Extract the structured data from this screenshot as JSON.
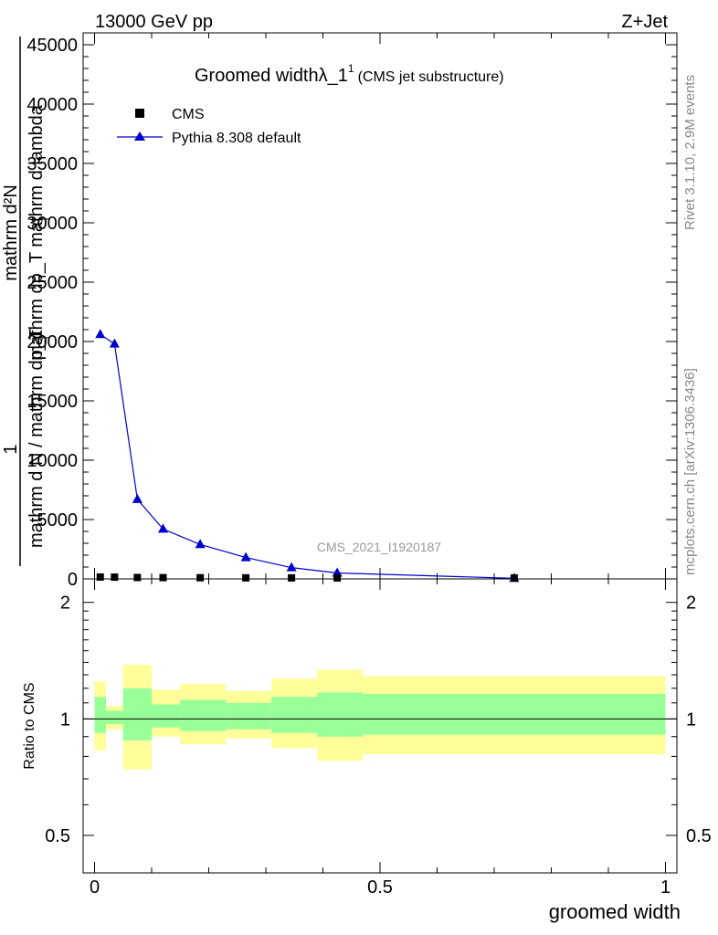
{
  "header": {
    "energy_label": "13000 GeV pp",
    "process_label": "Z+Jet"
  },
  "side_labels": {
    "rivet": "Rivet 3.1.10,  2.9M events",
    "mcplots": "mcplots.cern.ch [arXiv:1306.3436]"
  },
  "watermark": "CMS_2021_I1920187",
  "chart_data": [
    {
      "type": "line",
      "title_main": "Groomed width",
      "title_symbol": "λ_1",
      "title_sup": "1",
      "title_sub": "(CMS jet substructure)",
      "ylabel_numerator": "mathrm d²N",
      "ylabel_denominator": "mathrm dp_T mathrm d lambda",
      "ylabel_outer_num": "1",
      "ylabel_outer_den": "mathrm d N / mathrm dp_T",
      "ylabel_sub_1": "T",
      "ylabel_sub_2": "T",
      "xlim": [
        -0.02,
        1.02
      ],
      "ylim": [
        0,
        46000
      ],
      "yticks": [
        0,
        5000,
        10000,
        15000,
        20000,
        25000,
        30000,
        35000,
        40000,
        45000
      ],
      "ytick_labels": [
        "0",
        "5000",
        "10000",
        "15000",
        "20000",
        "25000",
        "30000",
        "35000",
        "40000",
        "45000"
      ],
      "legend_position": "top-left",
      "series": [
        {
          "name": "CMS",
          "marker": "square",
          "color": "#000000",
          "x": [
            0.01,
            0.035,
            0.075,
            0.12,
            0.185,
            0.265,
            0.345,
            0.425,
            0.735
          ],
          "values": [
            80,
            70,
            40,
            30,
            20,
            12,
            8,
            5,
            2
          ]
        },
        {
          "name": "Pythia 8.308 default",
          "marker": "triangle",
          "color": "#0000cc",
          "x": [
            0.01,
            0.035,
            0.075,
            0.12,
            0.185,
            0.265,
            0.345,
            0.425,
            0.735
          ],
          "values": [
            20600,
            19800,
            6700,
            4200,
            2900,
            1800,
            950,
            500,
            50
          ]
        }
      ]
    },
    {
      "type": "area",
      "ylabel": "Ratio to CMS",
      "xlabel": "groomed width",
      "xlim": [
        -0.02,
        1.02
      ],
      "ylim": [
        0.4,
        2.3
      ],
      "log_y": true,
      "yticks": [
        0.5,
        1,
        2
      ],
      "ytick_labels": [
        "0.5",
        "1",
        "2"
      ],
      "xticks": [
        0,
        0.5,
        1
      ],
      "xtick_labels": [
        "0",
        "0.5",
        "1"
      ],
      "bin_edges": [
        0,
        0.02,
        0.05,
        0.1,
        0.15,
        0.23,
        0.31,
        0.39,
        0.47,
        1.0
      ],
      "band_outer_low": [
        0.83,
        0.94,
        0.74,
        0.9,
        0.86,
        0.89,
        0.84,
        0.78,
        0.81
      ],
      "band_outer_high": [
        1.25,
        1.08,
        1.38,
        1.19,
        1.23,
        1.18,
        1.27,
        1.34,
        1.29
      ],
      "band_inner_low": [
        0.92,
        0.97,
        0.88,
        0.95,
        0.93,
        0.94,
        0.92,
        0.9,
        0.91
      ],
      "band_inner_high": [
        1.14,
        1.05,
        1.2,
        1.09,
        1.12,
        1.1,
        1.14,
        1.17,
        1.16
      ],
      "colors": {
        "outer_band": "#ffff99",
        "inner_band": "#99ff99",
        "ref_line": "#000000"
      }
    }
  ]
}
